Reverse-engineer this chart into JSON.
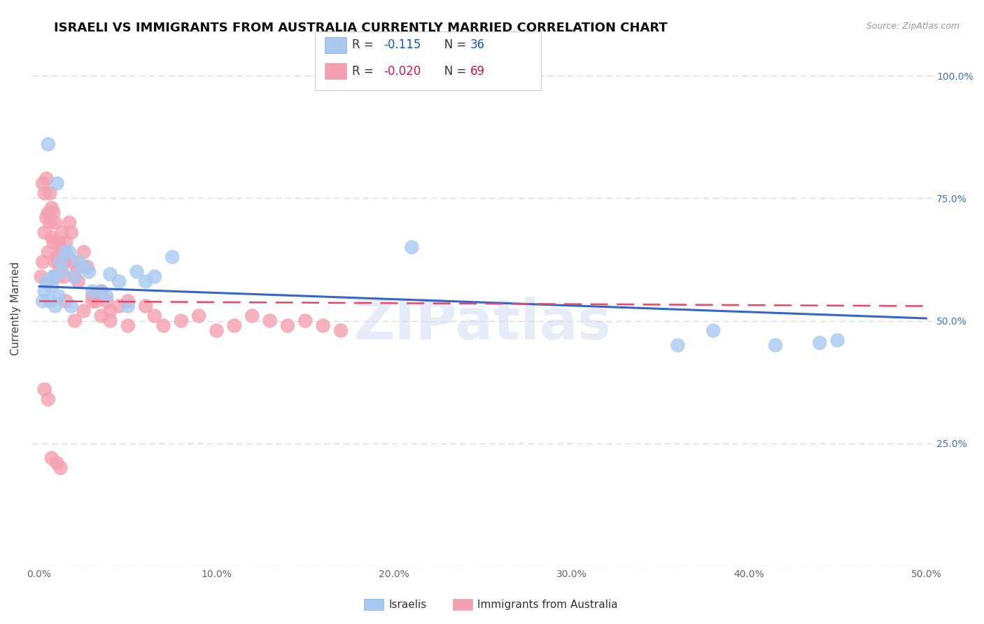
{
  "title": "ISRAELI VS IMMIGRANTS FROM AUSTRALIA CURRENTLY MARRIED CORRELATION CHART",
  "source": "Source: ZipAtlas.com",
  "ylabel": "Currently Married",
  "xlim": [
    0,
    0.5
  ],
  "ylim": [
    0,
    1.0
  ],
  "xticks": [
    0.0,
    0.1,
    0.2,
    0.3,
    0.4,
    0.5
  ],
  "xticklabels": [
    "0.0%",
    "10.0%",
    "20.0%",
    "30.0%",
    "40.0%",
    "50.0%"
  ],
  "ytick_right_labels": [
    "25.0%",
    "50.0%",
    "75.0%",
    "100.0%"
  ],
  "ytick_right_values": [
    0.25,
    0.5,
    0.75,
    1.0
  ],
  "legend_R_blue": "-0.115",
  "legend_N_blue": "36",
  "legend_R_pink": "-0.020",
  "legend_N_pink": "69",
  "blue_color": "#A8C8F0",
  "pink_color": "#F4A0B0",
  "blue_line_color": "#3366CC",
  "pink_line_color": "#EE4466",
  "watermark": "ZIPatlas",
  "israeli_x": [
    0.002,
    0.003,
    0.004,
    0.005,
    0.006,
    0.007,
    0.008,
    0.009,
    0.01,
    0.011,
    0.012,
    0.013,
    0.015,
    0.017,
    0.02,
    0.022,
    0.025,
    0.028,
    0.03,
    0.035,
    0.038,
    0.04,
    0.045,
    0.05,
    0.055,
    0.06,
    0.065,
    0.075,
    0.21,
    0.36,
    0.38,
    0.415,
    0.44,
    0.45,
    0.008,
    0.018
  ],
  "israeli_y": [
    0.54,
    0.56,
    0.58,
    0.86,
    0.54,
    0.57,
    0.59,
    0.53,
    0.78,
    0.55,
    0.62,
    0.6,
    0.64,
    0.64,
    0.59,
    0.62,
    0.61,
    0.6,
    0.56,
    0.56,
    0.55,
    0.595,
    0.58,
    0.53,
    0.6,
    0.58,
    0.59,
    0.63,
    0.65,
    0.45,
    0.48,
    0.45,
    0.455,
    0.46,
    0.59,
    0.53
  ],
  "australia_x": [
    0.001,
    0.002,
    0.002,
    0.003,
    0.003,
    0.004,
    0.004,
    0.005,
    0.005,
    0.006,
    0.006,
    0.007,
    0.007,
    0.008,
    0.008,
    0.009,
    0.009,
    0.01,
    0.01,
    0.011,
    0.011,
    0.012,
    0.012,
    0.013,
    0.013,
    0.014,
    0.014,
    0.015,
    0.016,
    0.017,
    0.018,
    0.019,
    0.02,
    0.021,
    0.022,
    0.025,
    0.027,
    0.03,
    0.032,
    0.035,
    0.038,
    0.04,
    0.045,
    0.05,
    0.06,
    0.065,
    0.07,
    0.08,
    0.09,
    0.1,
    0.11,
    0.12,
    0.13,
    0.14,
    0.15,
    0.16,
    0.17,
    0.003,
    0.005,
    0.007,
    0.01,
    0.012,
    0.015,
    0.02,
    0.025,
    0.03,
    0.035,
    0.04,
    0.05
  ],
  "australia_y": [
    0.59,
    0.78,
    0.62,
    0.76,
    0.68,
    0.79,
    0.71,
    0.72,
    0.64,
    0.76,
    0.7,
    0.73,
    0.67,
    0.72,
    0.66,
    0.7,
    0.62,
    0.59,
    0.63,
    0.66,
    0.62,
    0.65,
    0.61,
    0.68,
    0.64,
    0.62,
    0.59,
    0.66,
    0.63,
    0.7,
    0.68,
    0.62,
    0.59,
    0.61,
    0.58,
    0.64,
    0.61,
    0.55,
    0.54,
    0.56,
    0.54,
    0.52,
    0.53,
    0.54,
    0.53,
    0.51,
    0.49,
    0.5,
    0.51,
    0.48,
    0.49,
    0.51,
    0.5,
    0.49,
    0.5,
    0.49,
    0.48,
    0.36,
    0.34,
    0.22,
    0.21,
    0.2,
    0.54,
    0.5,
    0.52,
    0.54,
    0.51,
    0.5,
    0.49
  ],
  "blue_trend_x0": 0.0,
  "blue_trend_y0": 0.57,
  "blue_trend_x1": 0.5,
  "blue_trend_y1": 0.505,
  "pink_trend_x0": 0.0,
  "pink_trend_y0": 0.54,
  "pink_trend_x1": 0.5,
  "pink_trend_y1": 0.53,
  "background_color": "#FFFFFF",
  "grid_color": "#DDDDDD",
  "title_fontsize": 13,
  "axis_label_fontsize": 11,
  "tick_fontsize": 10,
  "tick_color_right": "#4472C4",
  "legend_fontsize": 12
}
